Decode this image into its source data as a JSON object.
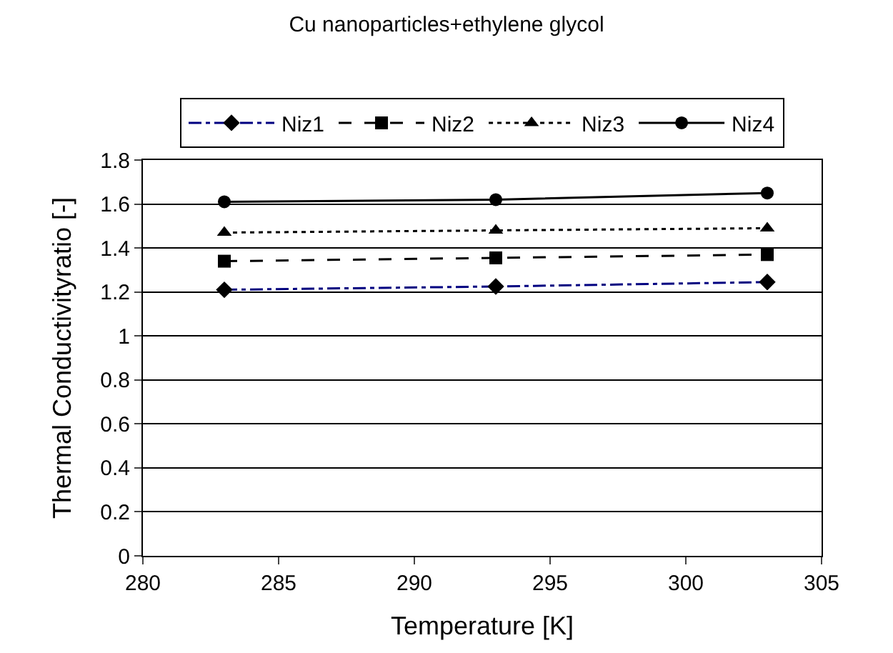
{
  "chart_data": {
    "type": "line",
    "title": "Cu nanoparticles+ethylene glycol",
    "xlabel": "Temperature [K]",
    "ylabel": "Thermal Conductivityratio [-]",
    "x": [
      283,
      293,
      303
    ],
    "series": [
      {
        "name": "Niz1",
        "color": "#000080",
        "values": [
          1.21,
          1.225,
          1.245
        ],
        "marker": "diamond",
        "line_style": "dashdot"
      },
      {
        "name": "Niz2",
        "color": "#000000",
        "values": [
          1.34,
          1.355,
          1.37
        ],
        "marker": "square",
        "line_style": "dashed"
      },
      {
        "name": "Niz3",
        "color": "#000000",
        "values": [
          1.47,
          1.48,
          1.49
        ],
        "marker": "triangle",
        "line_style": "dotted"
      },
      {
        "name": "Niz4",
        "color": "#000000",
        "values": [
          1.61,
          1.62,
          1.65
        ],
        "marker": "circle",
        "line_style": "solid"
      }
    ],
    "xlim": [
      280,
      305
    ],
    "xticks": [
      280,
      285,
      290,
      295,
      300,
      305
    ],
    "ylim": [
      0,
      1.8
    ],
    "yticks": [
      0,
      0.2,
      0.4,
      0.6,
      0.8,
      1,
      1.2,
      1.4,
      1.6,
      1.8
    ],
    "grid": "y",
    "legend": "top"
  }
}
